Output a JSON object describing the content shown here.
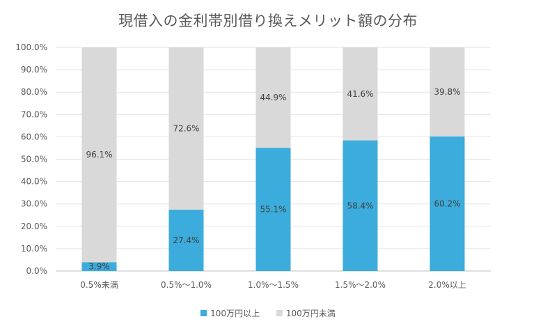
{
  "chart_data": {
    "type": "bar",
    "stacked": true,
    "title": "現借入の金利帯別借り換えメリット額の分布",
    "categories": [
      "0.5%未満",
      "0.5%〜1.0%",
      "1.0%〜1.5%",
      "1.5%〜2.0%",
      "2.0%以上"
    ],
    "series": [
      {
        "name": "100万円以上",
        "color": "#3BACDB",
        "values": [
          3.9,
          27.4,
          55.1,
          58.4,
          60.2
        ],
        "labels": [
          "3.9%",
          "27.4%",
          "55.1%",
          "58.4%",
          "60.2%"
        ]
      },
      {
        "name": "100万円未満",
        "color": "#D9D9D9",
        "values": [
          96.1,
          72.6,
          44.9,
          41.6,
          39.8
        ],
        "labels": [
          "96.1%",
          "72.6%",
          "44.9%",
          "41.6%",
          "39.8%"
        ]
      }
    ],
    "y_ticks": [
      "0.0%",
      "10.0%",
      "20.0%",
      "30.0%",
      "40.0%",
      "50.0%",
      "60.0%",
      "70.0%",
      "80.0%",
      "90.0%",
      "100.0%"
    ],
    "ylim": [
      0,
      100
    ],
    "grid": true,
    "legend_position": "bottom"
  }
}
